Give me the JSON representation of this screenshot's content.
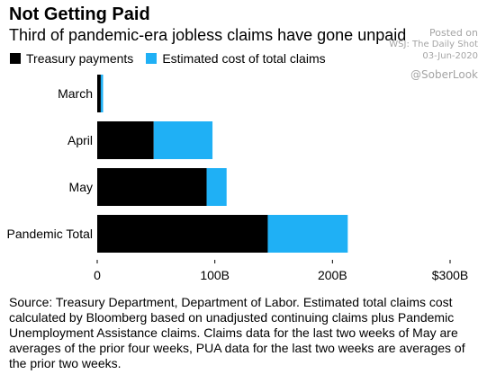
{
  "title": "Not Getting Paid",
  "subtitle": "Third of pandemic-era jobless claims have gone unpaid",
  "watermark": {
    "posted": "Posted on",
    "source": "WSJ: The Daily Shot",
    "date": "03-Jun-2020",
    "handle": "@SoberLook"
  },
  "colors": {
    "treasury": "#000000",
    "estimated": "#1fb0f5"
  },
  "source_note": "Source: Treasury Department, Department of Labor. Estimated total claims cost calculated by Bloomberg based on unadjusted continuing claims plus Pandemic Unemployment Assistance claims. Claims data for the last two weeks of May are averages of the prior four weeks, PUA data for the last two weeks are averages of the prior two weeks.",
  "chart_data": {
    "type": "bar",
    "orientation": "horizontal",
    "stacked": true,
    "categories": [
      "March",
      "April",
      "May",
      "Pandemic Total"
    ],
    "series": [
      {
        "name": "Treasury payments",
        "values": [
          3,
          48,
          93,
          145
        ]
      },
      {
        "name": "Estimated cost of total claims",
        "values": [
          2,
          50,
          17,
          68
        ]
      }
    ],
    "xlim": [
      0,
      300
    ],
    "x_ticks": [
      0,
      100,
      200,
      300
    ],
    "x_tick_labels": [
      "0",
      "100B",
      "200B",
      "$300B"
    ],
    "legend_position": "top-left",
    "grid": false
  }
}
